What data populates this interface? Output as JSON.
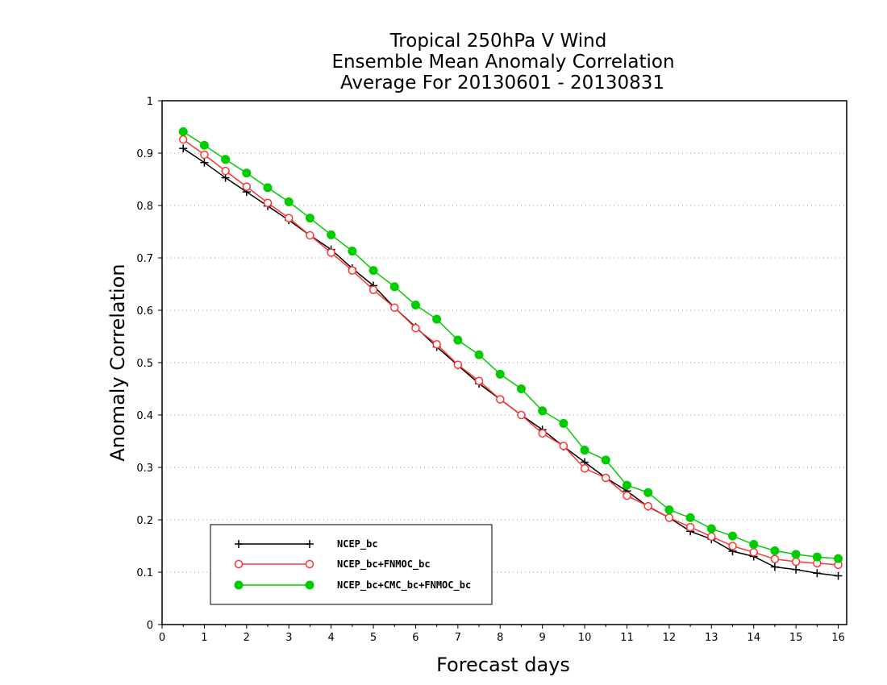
{
  "chart_data": {
    "type": "line",
    "title_lines": [
      "Tropical 250hPa V Wind",
      "Ensemble Mean Anomaly Correlation",
      "Average For 20130601 - 20130831"
    ],
    "xlabel": "Forecast days",
    "ylabel": "Anomaly Correlation",
    "xlim": [
      0,
      16.2
    ],
    "ylim": [
      0,
      1
    ],
    "x_ticks": [
      "0",
      "1",
      "2",
      "3",
      "4",
      "5",
      "6",
      "7",
      "8",
      "9",
      "10",
      "11",
      "12",
      "13",
      "14",
      "15",
      "16"
    ],
    "y_ticks": [
      "0",
      "0.1",
      "0.2",
      "0.3",
      "0.4",
      "0.5",
      "0.6",
      "0.7",
      "0.8",
      "0.9",
      "1"
    ],
    "grid": "horizontal dotted",
    "legend_position": "bottom-left",
    "x": [
      0.5,
      1,
      1.5,
      2,
      2.5,
      3,
      3.5,
      4,
      4.5,
      5,
      5.5,
      6,
      6.5,
      7,
      7.5,
      8,
      8.5,
      9,
      9.5,
      10,
      10.5,
      11,
      11.5,
      12,
      12.5,
      13,
      13.5,
      14,
      14.5,
      15,
      15.5,
      16
    ],
    "series": [
      {
        "name": "NCEP_bc",
        "color": "#000000",
        "marker": "plus",
        "values": [
          0.909,
          0.882,
          0.853,
          0.826,
          0.799,
          0.772,
          0.743,
          0.716,
          0.68,
          0.647,
          0.605,
          0.568,
          0.53,
          0.495,
          0.46,
          0.43,
          0.4,
          0.372,
          0.34,
          0.31,
          0.28,
          0.255,
          0.225,
          0.204,
          0.178,
          0.163,
          0.14,
          0.13,
          0.11,
          0.105,
          0.098,
          0.093
        ]
      },
      {
        "name": "NCEP_bc+FNMOC_bc",
        "color": "#ff3333",
        "marker": "open-circle",
        "values": [
          0.926,
          0.897,
          0.866,
          0.836,
          0.805,
          0.776,
          0.743,
          0.71,
          0.676,
          0.639,
          0.605,
          0.566,
          0.535,
          0.496,
          0.465,
          0.43,
          0.4,
          0.365,
          0.341,
          0.298,
          0.28,
          0.246,
          0.226,
          0.204,
          0.186,
          0.168,
          0.15,
          0.138,
          0.125,
          0.12,
          0.117,
          0.114
        ]
      },
      {
        "name": "NCEP_bc+CMC_bc+FNMOC_bc",
        "color": "#00cc00",
        "marker": "filled-circle",
        "values": [
          0.941,
          0.915,
          0.888,
          0.862,
          0.834,
          0.807,
          0.776,
          0.744,
          0.713,
          0.676,
          0.645,
          0.61,
          0.583,
          0.543,
          0.515,
          0.478,
          0.45,
          0.408,
          0.384,
          0.333,
          0.314,
          0.266,
          0.252,
          0.219,
          0.204,
          0.183,
          0.169,
          0.153,
          0.141,
          0.134,
          0.129,
          0.126
        ]
      }
    ]
  }
}
